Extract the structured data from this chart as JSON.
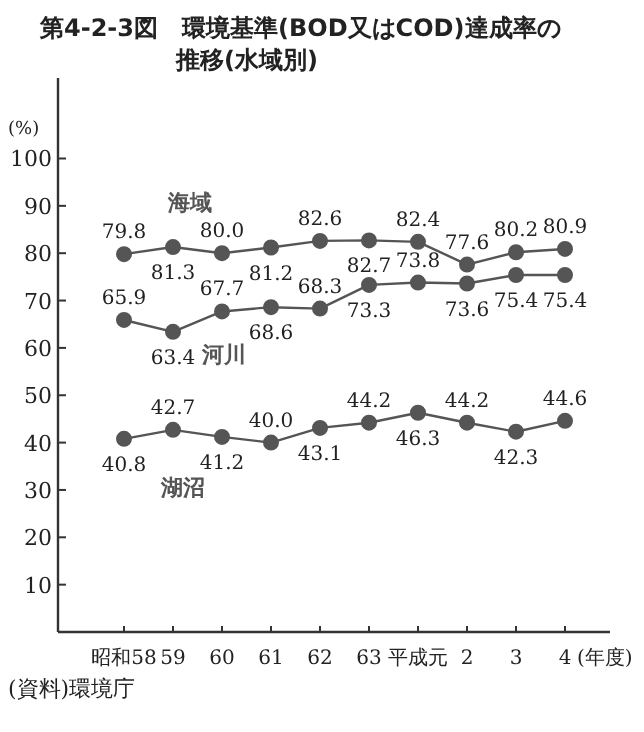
{
  "chart_data": {
    "type": "line",
    "title": "第4-2-3図　環境基準(BOD又はCOD)達成率の推移(水域別)",
    "ylabel": "(%)",
    "xlabel": "(年度)",
    "categories": [
      "昭和58",
      "59",
      "60",
      "61",
      "62",
      "63",
      "平成元",
      "2",
      "3",
      "4"
    ],
    "series": [
      {
        "name": "海域",
        "color": "#555555",
        "values": [
          79.8,
          81.3,
          80.0,
          81.2,
          82.6,
          82.7,
          82.4,
          77.6,
          80.2,
          80.9
        ],
        "value_labels": [
          "79.8",
          "81.3",
          "80.0",
          "81.2",
          "82.6",
          "82.7",
          "82.4",
          "77.6",
          "80.2",
          "80.9"
        ]
      },
      {
        "name": "河川",
        "color": "#555555",
        "values": [
          65.9,
          63.4,
          67.7,
          68.6,
          68.3,
          73.3,
          73.8,
          73.6,
          75.4,
          75.4
        ],
        "value_labels": [
          "65.9",
          "63.4",
          "67.7",
          "68.6",
          "68.3",
          "73.3",
          "73.8",
          "73.6",
          "75.4",
          "75.4"
        ]
      },
      {
        "name": "湖沼",
        "color": "#555555",
        "values": [
          40.8,
          42.7,
          41.2,
          40.0,
          43.1,
          44.2,
          46.3,
          44.2,
          42.3,
          44.6
        ],
        "value_labels": [
          "40.8",
          "42.7",
          "41.2",
          "40.0",
          "43.1",
          "44.2",
          "46.3",
          "44.2",
          "42.3",
          "44.6"
        ]
      }
    ],
    "ylim": [
      0,
      117
    ],
    "yticks": [
      10,
      20,
      30,
      40,
      50,
      60,
      70,
      80,
      90,
      100
    ],
    "marker": "circle",
    "annotations": [
      "(資料)環境庁"
    ]
  }
}
